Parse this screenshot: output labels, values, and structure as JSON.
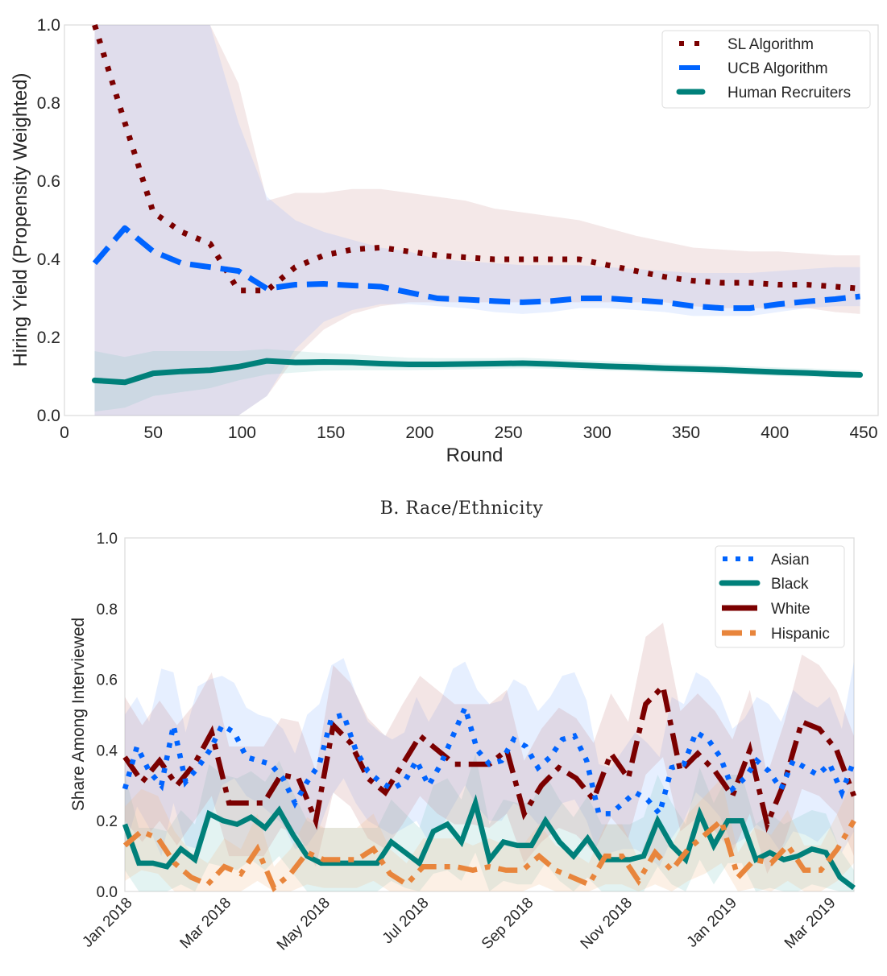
{
  "chart_data": [
    {
      "type": "line",
      "title": "",
      "xlabel": "Round",
      "ylabel": "Hiring Yield (Propensity Weighted)",
      "xlim": [
        0,
        450
      ],
      "ylim": [
        0.0,
        1.0
      ],
      "xticks": [
        "0",
        "50",
        "100",
        "150",
        "200",
        "250",
        "300",
        "350",
        "400",
        "450"
      ],
      "yticks": [
        "0.0",
        "0.2",
        "0.4",
        "0.6",
        "0.8",
        "1.0"
      ],
      "grid": false,
      "legend_position": "top-right",
      "x": [
        17,
        34,
        50,
        66,
        82,
        98,
        114,
        130,
        146,
        162,
        178,
        194,
        210,
        226,
        242,
        258,
        274,
        290,
        306,
        322,
        338,
        354,
        370,
        386,
        402,
        418,
        434,
        448
      ],
      "series": [
        {
          "name": "SL Algorithm",
          "color": "#7b0000",
          "style": "dotted",
          "values": [
            1.0,
            0.75,
            0.52,
            0.47,
            0.44,
            0.32,
            0.32,
            0.38,
            0.41,
            0.425,
            0.43,
            0.42,
            0.41,
            0.405,
            0.4,
            0.4,
            0.4,
            0.4,
            0.385,
            0.37,
            0.355,
            0.345,
            0.34,
            0.34,
            0.335,
            0.335,
            0.33,
            0.325
          ],
          "ci_lower": [
            0.0,
            0.0,
            0.0,
            0.0,
            0.0,
            0.0,
            0.05,
            0.15,
            0.22,
            0.26,
            0.28,
            0.29,
            0.29,
            0.29,
            0.29,
            0.29,
            0.29,
            0.29,
            0.29,
            0.29,
            0.29,
            0.28,
            0.275,
            0.275,
            0.275,
            0.275,
            0.265,
            0.26
          ],
          "ci_upper": [
            1.0,
            1.0,
            1.0,
            1.0,
            1.0,
            0.85,
            0.55,
            0.57,
            0.57,
            0.58,
            0.58,
            0.57,
            0.56,
            0.55,
            0.53,
            0.52,
            0.51,
            0.5,
            0.48,
            0.46,
            0.445,
            0.43,
            0.425,
            0.42,
            0.42,
            0.415,
            0.41,
            0.41
          ]
        },
        {
          "name": "UCB Algorithm",
          "color": "#0064ff",
          "style": "dashed",
          "values": [
            0.39,
            0.48,
            0.42,
            0.39,
            0.38,
            0.37,
            0.325,
            0.335,
            0.337,
            0.333,
            0.33,
            0.315,
            0.3,
            0.297,
            0.293,
            0.29,
            0.293,
            0.3,
            0.3,
            0.295,
            0.29,
            0.28,
            0.275,
            0.275,
            0.285,
            0.292,
            0.298,
            0.305
          ],
          "ci_lower": [
            0.0,
            0.0,
            0.0,
            0.0,
            0.0,
            0.0,
            0.05,
            0.17,
            0.24,
            0.27,
            0.285,
            0.285,
            0.28,
            0.275,
            0.265,
            0.26,
            0.265,
            0.275,
            0.275,
            0.27,
            0.265,
            0.255,
            0.255,
            0.255,
            0.265,
            0.275,
            0.28,
            0.28
          ],
          "ci_upper": [
            1.0,
            1.0,
            1.0,
            1.0,
            1.0,
            0.75,
            0.56,
            0.5,
            0.47,
            0.45,
            0.43,
            0.42,
            0.4,
            0.395,
            0.39,
            0.385,
            0.385,
            0.385,
            0.38,
            0.375,
            0.37,
            0.365,
            0.365,
            0.365,
            0.37,
            0.375,
            0.38,
            0.38
          ]
        },
        {
          "name": "Human Recruiters",
          "color": "#00807a",
          "style": "solid",
          "values": [
            0.09,
            0.085,
            0.108,
            0.113,
            0.116,
            0.125,
            0.14,
            0.136,
            0.137,
            0.136,
            0.133,
            0.131,
            0.131,
            0.132,
            0.133,
            0.134,
            0.132,
            0.129,
            0.126,
            0.124,
            0.121,
            0.119,
            0.117,
            0.114,
            0.111,
            0.109,
            0.106,
            0.104
          ],
          "ci_lower": [
            0.01,
            0.02,
            0.05,
            0.06,
            0.07,
            0.09,
            0.105,
            0.11,
            0.115,
            0.116,
            0.116,
            0.116,
            0.117,
            0.118,
            0.12,
            0.121,
            0.12,
            0.117,
            0.115,
            0.113,
            0.11,
            0.108,
            0.106,
            0.104,
            0.101,
            0.099,
            0.097,
            0.095
          ],
          "ci_upper": [
            0.165,
            0.15,
            0.165,
            0.165,
            0.165,
            0.165,
            0.17,
            0.165,
            0.16,
            0.157,
            0.152,
            0.148,
            0.147,
            0.147,
            0.147,
            0.148,
            0.145,
            0.142,
            0.139,
            0.136,
            0.133,
            0.131,
            0.129,
            0.126,
            0.123,
            0.121,
            0.118,
            0.116
          ]
        }
      ]
    },
    {
      "type": "line",
      "title": "B. Race/Ethnicity",
      "xlabel": "",
      "ylabel": "Share Among Interviewed",
      "ylim": [
        0.0,
        1.0
      ],
      "yticks": [
        "0.0",
        "0.2",
        "0.4",
        "0.6",
        "0.8",
        "1.0"
      ],
      "xticks": [
        "Jan 2018",
        "Mar 2018",
        "May 2018",
        "Jul 2018",
        "Sep 2018",
        "Nov 2018",
        "Jan 2019",
        "Mar 2019"
      ],
      "x_range_weeks": [
        -0.2,
        63.3
      ],
      "xtick_weeks": [
        0.5,
        9.0,
        17.5,
        26.0,
        35.0,
        43.5,
        52.5,
        61.0
      ],
      "grid": false,
      "legend_position": "top-right",
      "series": [
        {
          "name": "Asian",
          "color": "#0064ff",
          "style": "dotted",
          "values": [
            0.29,
            0.41,
            0.34,
            0.3,
            0.47,
            0.31,
            0.35,
            0.4,
            0.47,
            0.45,
            0.38,
            0.37,
            0.36,
            0.32,
            0.25,
            0.31,
            0.36,
            0.49,
            0.5,
            0.4,
            0.34,
            0.31,
            0.29,
            0.31,
            0.37,
            0.3,
            0.36,
            0.44,
            0.52,
            0.4,
            0.36,
            0.37,
            0.43,
            0.41,
            0.35,
            0.38,
            0.43,
            0.44,
            0.37,
            0.22,
            0.22,
            0.25,
            0.28,
            0.26,
            0.22,
            0.35,
            0.36,
            0.45,
            0.43,
            0.38,
            0.29,
            0.32,
            0.37,
            0.34,
            0.29,
            0.37,
            0.35,
            0.33,
            0.36,
            0.28,
            0.37
          ],
          "ci_lower": [
            0.12,
            0.24,
            0.18,
            0.1,
            0.25,
            0.13,
            0.12,
            0.2,
            0.3,
            0.32,
            0.27,
            0.25,
            0.22,
            0.19,
            0.12,
            0.13,
            0.18,
            0.27,
            0.32,
            0.25,
            0.2,
            0.18,
            0.16,
            0.18,
            0.2,
            0.14,
            0.18,
            0.24,
            0.3,
            0.24,
            0.2,
            0.2,
            0.25,
            0.23,
            0.19,
            0.2,
            0.25,
            0.26,
            0.2,
            0.1,
            0.11,
            0.12,
            0.12,
            0.1,
            0.07,
            0.15,
            0.2,
            0.28,
            0.25,
            0.21,
            0.13,
            0.15,
            0.19,
            0.16,
            0.11,
            0.17,
            0.16,
            0.14,
            0.18,
            0.11,
            0.17
          ],
          "ci_upper": [
            0.5,
            0.55,
            0.48,
            0.63,
            0.62,
            0.45,
            0.58,
            0.6,
            0.61,
            0.59,
            0.52,
            0.5,
            0.49,
            0.46,
            0.39,
            0.5,
            0.53,
            0.64,
            0.66,
            0.56,
            0.48,
            0.45,
            0.43,
            0.45,
            0.55,
            0.48,
            0.54,
            0.63,
            0.65,
            0.57,
            0.53,
            0.54,
            0.6,
            0.58,
            0.51,
            0.55,
            0.61,
            0.62,
            0.54,
            0.36,
            0.35,
            0.4,
            0.45,
            0.42,
            0.38,
            0.55,
            0.53,
            0.62,
            0.6,
            0.55,
            0.46,
            0.49,
            0.55,
            0.53,
            0.48,
            0.57,
            0.54,
            0.52,
            0.55,
            0.46,
            0.65
          ]
        },
        {
          "name": "Black",
          "color": "#00807a",
          "style": "solid",
          "values": [
            0.19,
            0.08,
            0.08,
            0.07,
            0.12,
            0.09,
            0.22,
            0.2,
            0.19,
            0.21,
            0.18,
            0.23,
            0.16,
            0.1,
            0.08,
            0.08,
            0.08,
            0.08,
            0.08,
            0.14,
            0.11,
            0.08,
            0.17,
            0.19,
            0.14,
            0.25,
            0.09,
            0.14,
            0.13,
            0.13,
            0.2,
            0.14,
            0.1,
            0.15,
            0.09,
            0.09,
            0.09,
            0.1,
            0.2,
            0.13,
            0.09,
            0.22,
            0.13,
            0.2,
            0.2,
            0.09,
            0.11,
            0.09,
            0.1,
            0.12,
            0.11,
            0.04,
            0.01
          ],
          "ci_lower": [
            0.06,
            0.0,
            0.0,
            0.0,
            0.02,
            0.0,
            0.08,
            0.07,
            0.06,
            0.09,
            0.06,
            0.1,
            0.05,
            0.0,
            0.0,
            0.0,
            0.0,
            0.0,
            0.0,
            0.03,
            0.01,
            0.0,
            0.05,
            0.06,
            0.03,
            0.11,
            0.0,
            0.03,
            0.02,
            0.02,
            0.08,
            0.03,
            0.0,
            0.04,
            0.0,
            0.0,
            0.0,
            0.0,
            0.07,
            0.02,
            0.0,
            0.09,
            0.02,
            0.08,
            0.08,
            0.0,
            0.01,
            0.0,
            0.0,
            0.02,
            0.01,
            0.0,
            0.0
          ],
          "ci_upper": [
            0.33,
            0.18,
            0.18,
            0.17,
            0.23,
            0.19,
            0.36,
            0.33,
            0.32,
            0.34,
            0.31,
            0.37,
            0.28,
            0.2,
            0.18,
            0.18,
            0.18,
            0.18,
            0.18,
            0.26,
            0.22,
            0.18,
            0.3,
            0.32,
            0.26,
            0.39,
            0.19,
            0.26,
            0.25,
            0.25,
            0.33,
            0.26,
            0.21,
            0.27,
            0.19,
            0.19,
            0.19,
            0.21,
            0.33,
            0.25,
            0.19,
            0.35,
            0.25,
            0.33,
            0.33,
            0.19,
            0.22,
            0.19,
            0.21,
            0.23,
            0.22,
            0.12,
            0.06
          ]
        },
        {
          "name": "White",
          "color": "#7b0000",
          "style": "dashdot",
          "values": [
            0.38,
            0.31,
            0.37,
            0.3,
            0.36,
            0.45,
            0.25,
            0.25,
            0.25,
            0.33,
            0.32,
            0.2,
            0.47,
            0.42,
            0.32,
            0.28,
            0.36,
            0.44,
            0.4,
            0.36,
            0.36,
            0.36,
            0.4,
            0.22,
            0.3,
            0.35,
            0.32,
            0.26,
            0.39,
            0.32,
            0.53,
            0.58,
            0.34,
            0.39,
            0.34,
            0.27,
            0.4,
            0.19,
            0.31,
            0.48,
            0.46,
            0.4,
            0.27
          ],
          "ci_lower": [
            0.2,
            0.14,
            0.2,
            0.13,
            0.2,
            0.27,
            0.1,
            0.1,
            0.1,
            0.18,
            0.16,
            0.07,
            0.28,
            0.24,
            0.15,
            0.12,
            0.19,
            0.27,
            0.22,
            0.19,
            0.19,
            0.18,
            0.22,
            0.08,
            0.14,
            0.18,
            0.16,
            0.11,
            0.21,
            0.15,
            0.33,
            0.38,
            0.17,
            0.21,
            0.17,
            0.11,
            0.22,
            0.05,
            0.14,
            0.29,
            0.27,
            0.22,
            0.1
          ],
          "ci_upper": [
            0.55,
            0.47,
            0.54,
            0.47,
            0.53,
            0.62,
            0.41,
            0.41,
            0.41,
            0.49,
            0.48,
            0.34,
            0.64,
            0.59,
            0.49,
            0.44,
            0.53,
            0.61,
            0.57,
            0.53,
            0.53,
            0.53,
            0.57,
            0.37,
            0.46,
            0.52,
            0.49,
            0.42,
            0.56,
            0.48,
            0.72,
            0.76,
            0.51,
            0.56,
            0.51,
            0.43,
            0.57,
            0.33,
            0.48,
            0.67,
            0.64,
            0.57,
            0.44
          ]
        },
        {
          "name": "Hispanic",
          "color": "#e8853c",
          "style": "dashdot",
          "values": [
            0.13,
            0.17,
            0.15,
            0.08,
            0.04,
            0.02,
            0.07,
            0.05,
            0.12,
            0.01,
            0.05,
            0.11,
            0.09,
            0.09,
            0.09,
            0.12,
            0.05,
            0.02,
            0.07,
            0.07,
            0.07,
            0.06,
            0.07,
            0.06,
            0.06,
            0.1,
            0.06,
            0.04,
            0.02,
            0.1,
            0.1,
            0.03,
            0.11,
            0.06,
            0.12,
            0.16,
            0.2,
            0.04,
            0.09,
            0.08,
            0.13,
            0.06,
            0.06,
            0.12,
            0.2
          ],
          "ci_lower": [
            0.03,
            0.06,
            0.05,
            0.0,
            0.0,
            0.0,
            0.0,
            0.0,
            0.03,
            0.0,
            0.0,
            0.02,
            0.01,
            0.01,
            0.01,
            0.03,
            0.0,
            0.0,
            0.0,
            0.0,
            0.0,
            0.0,
            0.0,
            0.0,
            0.0,
            0.02,
            0.0,
            0.0,
            0.0,
            0.02,
            0.02,
            0.0,
            0.02,
            0.0,
            0.03,
            0.05,
            0.08,
            0.0,
            0.01,
            0.0,
            0.03,
            0.0,
            0.0,
            0.03,
            0.08
          ],
          "ci_upper": [
            0.24,
            0.29,
            0.27,
            0.17,
            0.11,
            0.08,
            0.15,
            0.12,
            0.22,
            0.07,
            0.12,
            0.21,
            0.18,
            0.18,
            0.18,
            0.22,
            0.12,
            0.08,
            0.15,
            0.15,
            0.15,
            0.13,
            0.15,
            0.13,
            0.13,
            0.19,
            0.13,
            0.11,
            0.08,
            0.19,
            0.19,
            0.09,
            0.21,
            0.13,
            0.22,
            0.27,
            0.32,
            0.11,
            0.18,
            0.16,
            0.23,
            0.13,
            0.13,
            0.22,
            0.32
          ]
        }
      ]
    }
  ]
}
